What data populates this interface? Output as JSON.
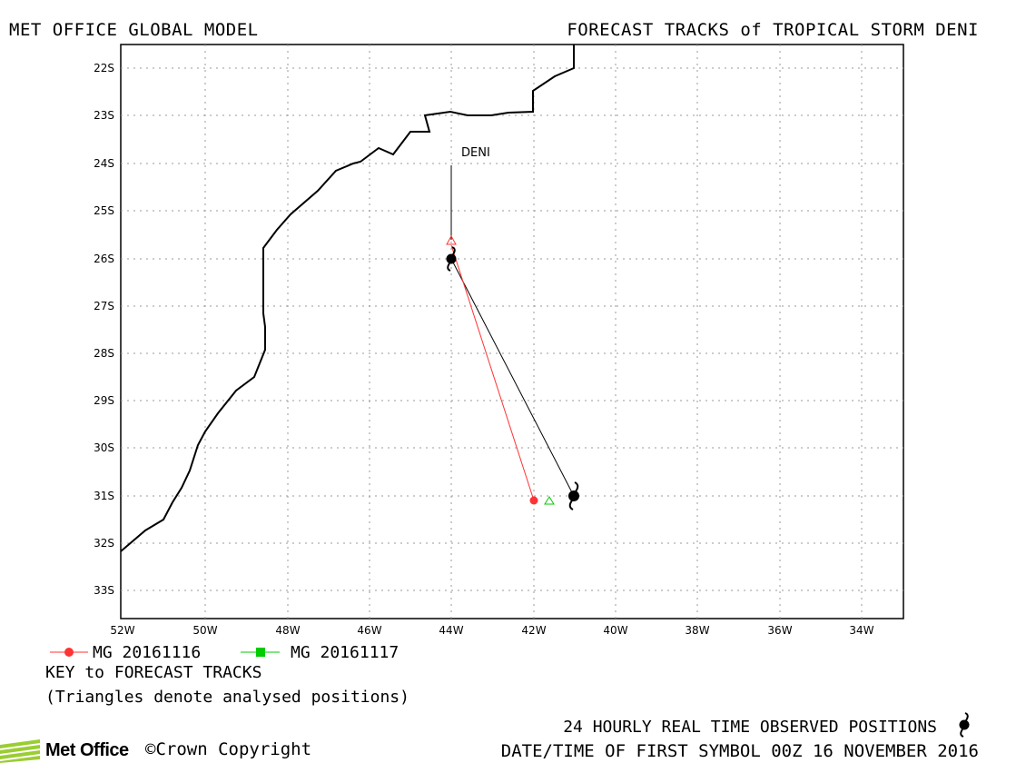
{
  "header": {
    "left_title": "MET OFFICE GLOBAL MODEL",
    "right_title": "FORECAST TRACKS of TROPICAL STORM DENI"
  },
  "map": {
    "lat_labels": [
      "22S",
      "23S",
      "24S",
      "25S",
      "26S",
      "27S",
      "28S",
      "29S",
      "30S",
      "31S",
      "32S",
      "33S"
    ],
    "lon_labels": [
      "52W",
      "50W",
      "48W",
      "46W",
      "44W",
      "42W",
      "40W",
      "38W",
      "36W",
      "34W"
    ],
    "storm_label": "DENI",
    "tracks": [
      {
        "name": "MG 20161116",
        "color": "#ff3333",
        "points": [
          [
            -44.0,
            -26.0
          ],
          [
            -42.0,
            -31.1
          ]
        ]
      },
      {
        "name": "MG 20161117",
        "color": "#00cc00",
        "points": []
      }
    ],
    "observed": [
      [
        -44.0,
        -26.0
      ],
      [
        -41.0,
        -31.0
      ]
    ],
    "analysed_red": [
      -44.0,
      -25.6
    ],
    "analysed_green": [
      -41.6,
      -31.1
    ]
  },
  "legend": {
    "item1": "MG 20161116",
    "item2": "MG 20161117",
    "key_title": "KEY to FORECAST TRACKS",
    "key_note": "(Triangles denote analysed positions)"
  },
  "footer": {
    "observed_text": "24 HOURLY REAL TIME OBSERVED POSITIONS",
    "datetime_text": "DATE/TIME OF FIRST SYMBOL 00Z 16 NOVEMBER 2016",
    "logo_text": "Met Office",
    "copyright_text": "Crown Copyright",
    "copyright_symbol": "©"
  },
  "colors": {
    "track1": "#ff3333",
    "track2": "#00cc00",
    "grid": "#999999",
    "coast": "#000000"
  }
}
